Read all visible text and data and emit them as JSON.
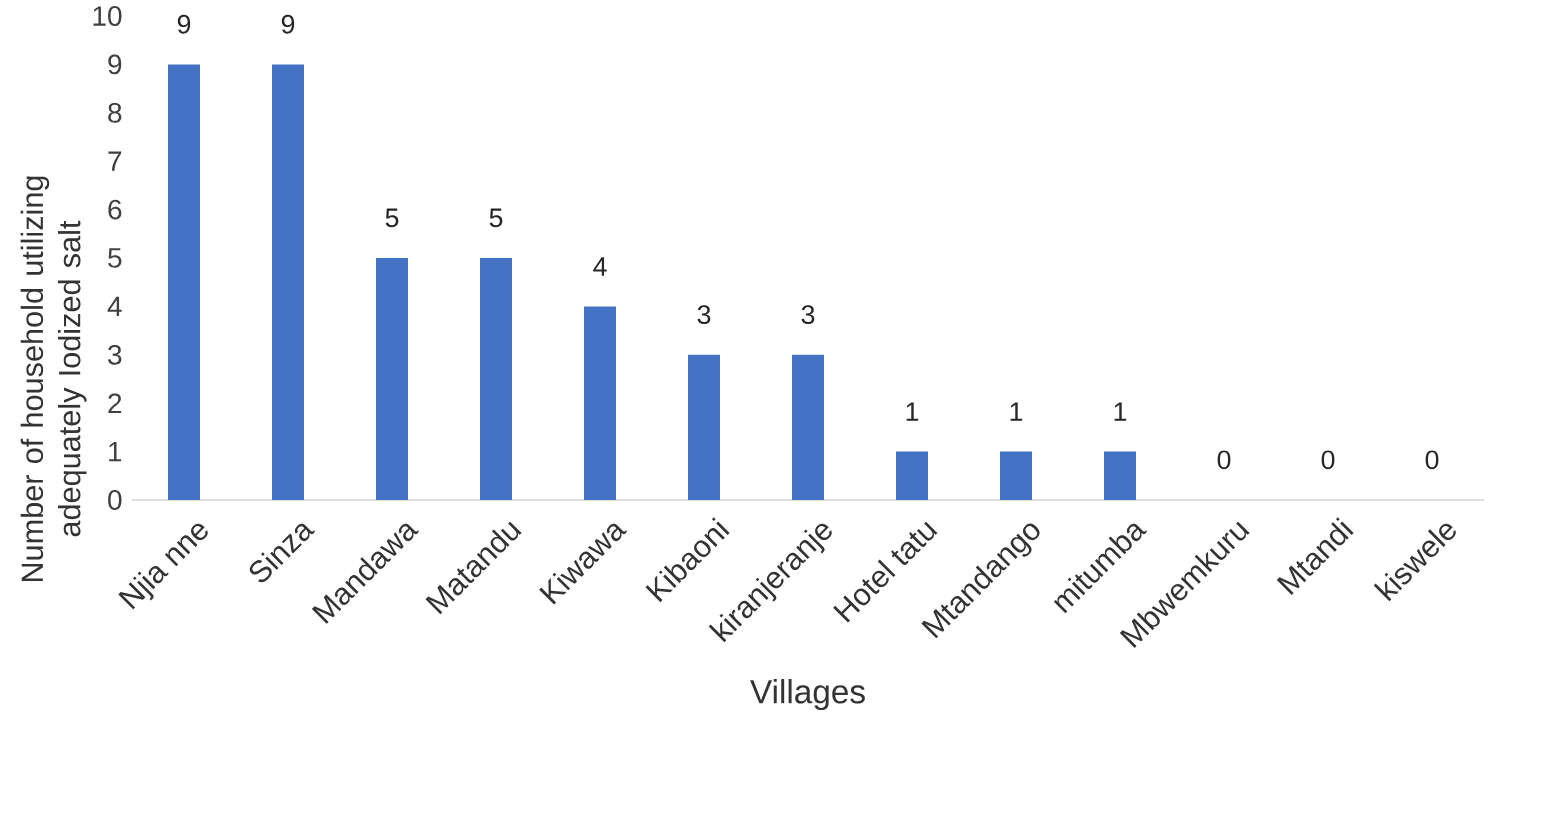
{
  "chart_data": {
    "type": "bar",
    "xlabel": "Villages",
    "ylabel": "Number of household utilizing adequately Iodized salt",
    "categories": [
      "Njia nne",
      "Sinza",
      "Mandawa",
      "Matandu",
      "Kiwawa",
      "Kibaoni",
      "kiranjeranje",
      "Hotel tatu",
      "Mtandango",
      "mitumba",
      "Mbwemkuru",
      "Mtandi",
      "kiswele"
    ],
    "values": [
      9,
      9,
      5,
      5,
      4,
      3,
      3,
      1,
      1,
      1,
      0,
      0,
      0
    ],
    "color": "#4472c4",
    "ylim": [
      0,
      10
    ],
    "yticks": [
      0,
      1,
      2,
      3,
      4,
      5,
      6,
      7,
      8,
      9,
      10
    ],
    "data_labels": true,
    "grid": false
  }
}
